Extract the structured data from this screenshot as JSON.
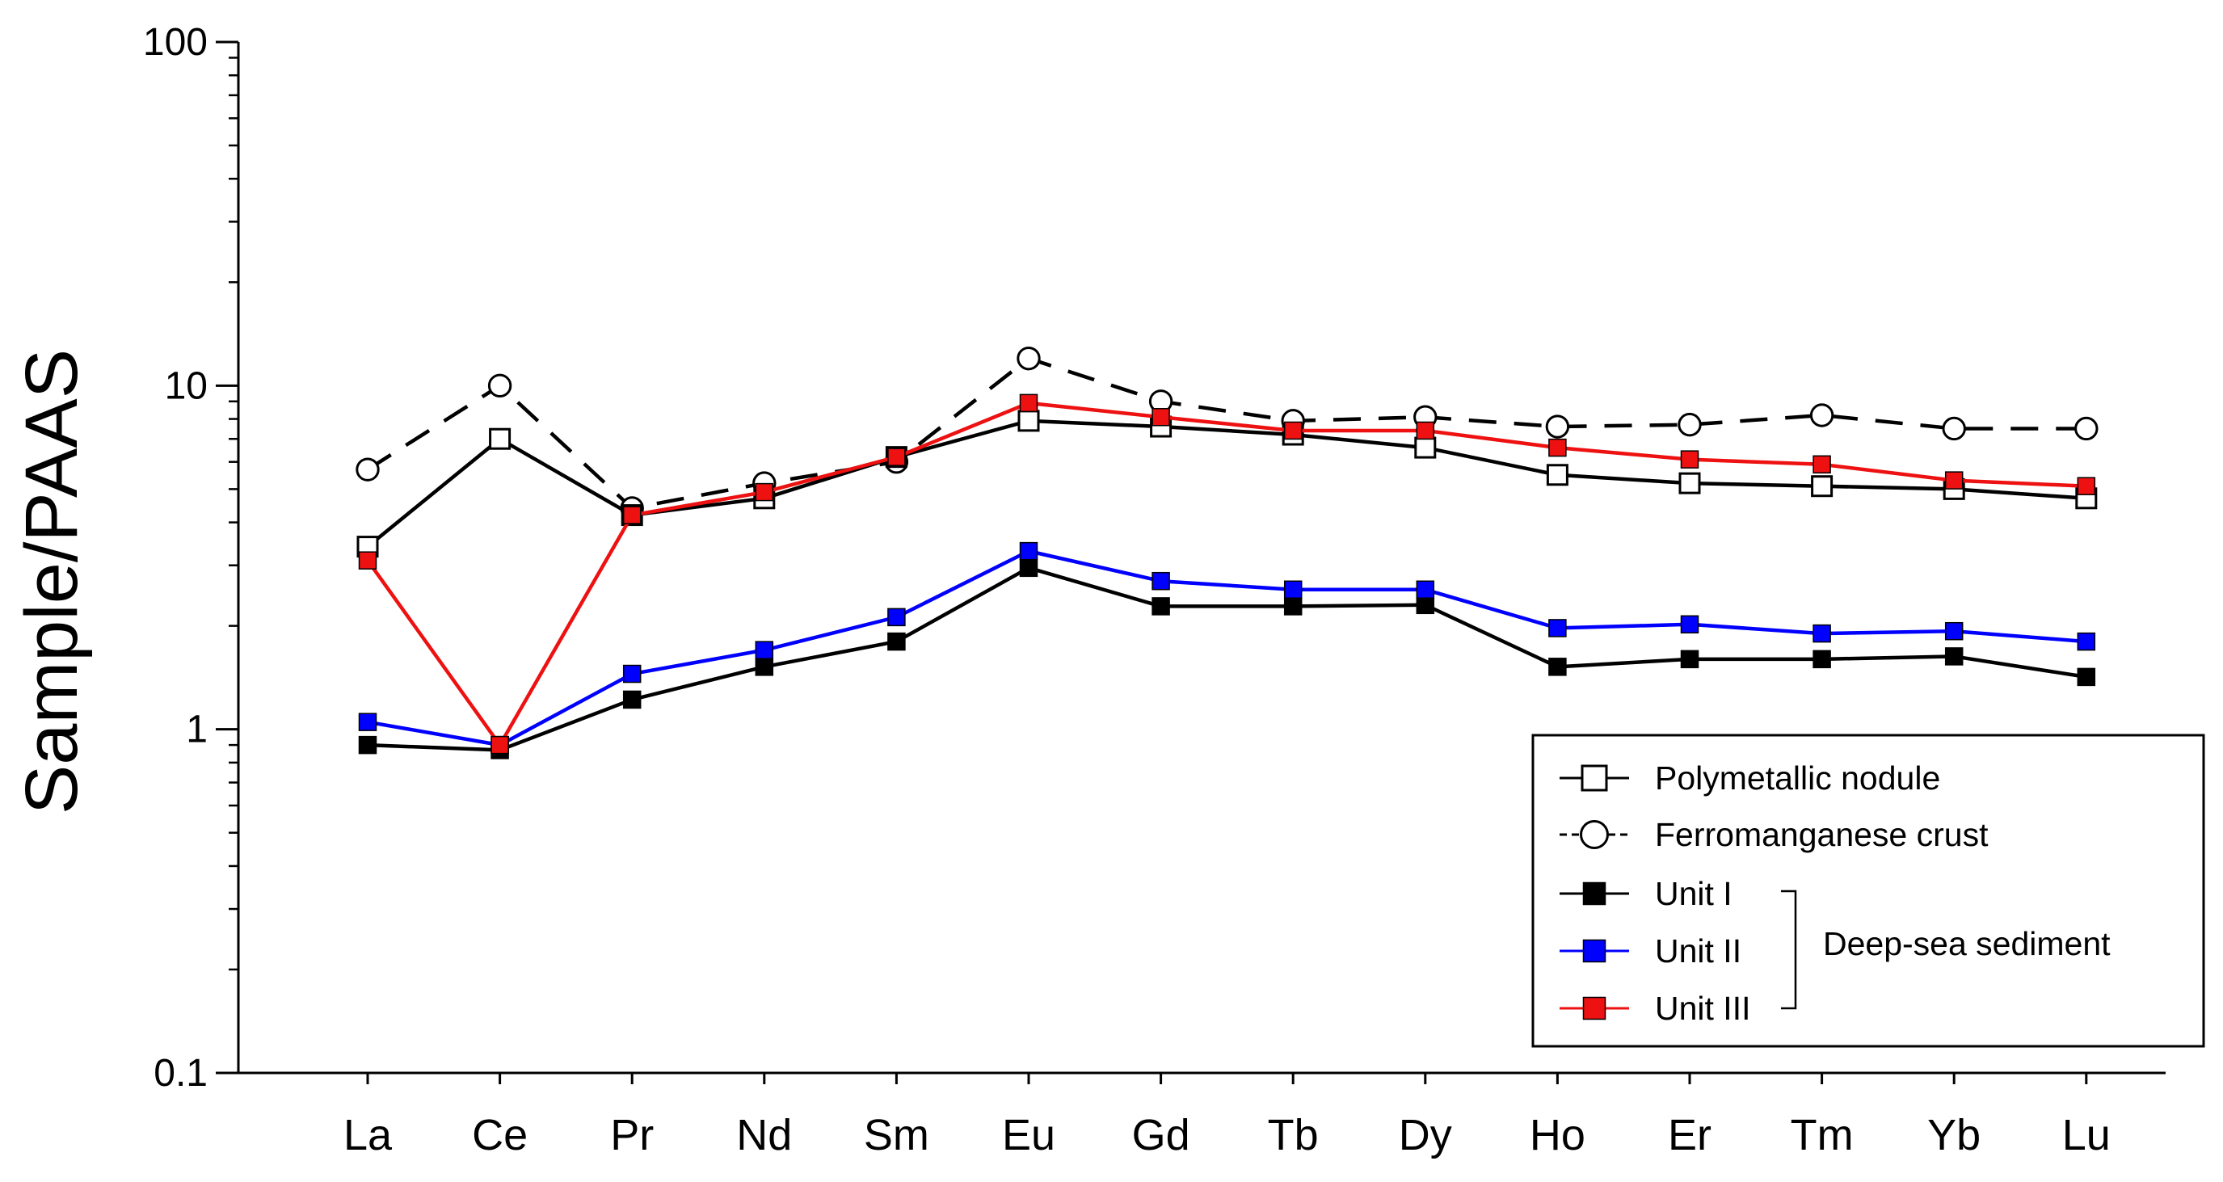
{
  "chart_data": {
    "type": "line",
    "yscale": "log",
    "ylabel": "Sample/PAAS",
    "xlabel": "",
    "ylim": [
      0.1,
      100
    ],
    "yticks": [
      {
        "value": 0.1,
        "label": "0.1"
      },
      {
        "value": 1,
        "label": "1"
      },
      {
        "value": 10,
        "label": "10"
      },
      {
        "value": 100,
        "label": "100"
      }
    ],
    "categories": [
      "La",
      "Ce",
      "Pr",
      "Nd",
      "Sm",
      "Eu",
      "Gd",
      "Tb",
      "Dy",
      "Ho",
      "Er",
      "Tm",
      "Yb",
      "Lu"
    ],
    "series": [
      {
        "key": "nodule",
        "name": "Polymetallic nodule",
        "color": "#000000",
        "marker": "open-square",
        "dashed": false,
        "values": [
          3.4,
          7.0,
          4.2,
          4.7,
          6.2,
          7.9,
          7.6,
          7.2,
          6.6,
          5.5,
          5.2,
          5.1,
          5.0,
          4.7
        ]
      },
      {
        "key": "crust",
        "name": "Ferromanganese crust",
        "color": "#000000",
        "marker": "open-circle",
        "dashed": true,
        "values": [
          5.7,
          10.0,
          4.4,
          5.2,
          6.0,
          12.0,
          9.0,
          7.9,
          8.1,
          7.6,
          7.7,
          8.2,
          7.5,
          7.5
        ]
      },
      {
        "key": "unit1",
        "name": "Unit I",
        "color": "#000000",
        "marker": "filled-square",
        "dashed": false,
        "values": [
          0.9,
          0.87,
          1.22,
          1.52,
          1.8,
          2.95,
          2.28,
          2.28,
          2.3,
          1.52,
          1.6,
          1.6,
          1.63,
          1.42
        ]
      },
      {
        "key": "unit2",
        "name": "Unit II",
        "color": "#0000ff",
        "marker": "filled-square",
        "dashed": false,
        "values": [
          1.05,
          0.9,
          1.45,
          1.7,
          2.12,
          3.3,
          2.7,
          2.55,
          2.55,
          1.97,
          2.02,
          1.9,
          1.93,
          1.8
        ]
      },
      {
        "key": "unit3",
        "name": "Unit III",
        "color": "#ee1111",
        "marker": "filled-square",
        "dashed": false,
        "values": [
          3.1,
          0.9,
          4.2,
          4.9,
          6.2,
          8.9,
          8.1,
          7.4,
          7.4,
          6.6,
          6.1,
          5.9,
          5.3,
          5.1
        ]
      }
    ],
    "legend": {
      "position": "bottom-right",
      "group_label": "Deep-sea sediment"
    }
  }
}
